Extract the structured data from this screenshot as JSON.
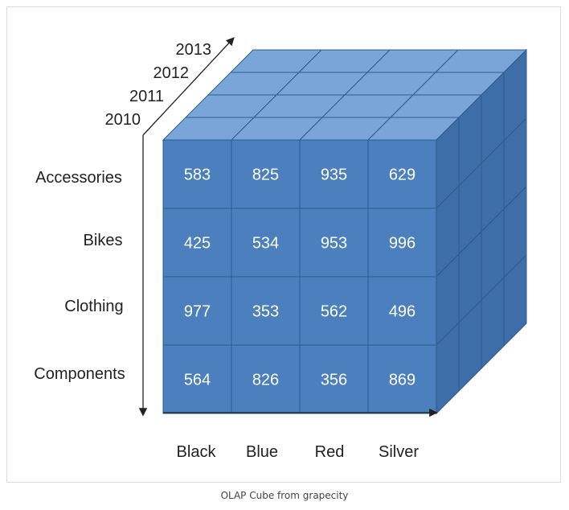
{
  "figure": {
    "caption": "OLAP Cube from grapecity",
    "years": [
      "2013",
      "2012",
      "2011",
      "2010"
    ],
    "categories": [
      "Accessories",
      "Bikes",
      "Clothing",
      "Components"
    ],
    "colors_labels": [
      "Black",
      "Blue",
      "Red",
      "Silver"
    ],
    "values": [
      [
        583,
        825,
        935,
        629
      ],
      [
        425,
        534,
        953,
        996
      ],
      [
        977,
        353,
        562,
        496
      ],
      [
        564,
        826,
        356,
        869
      ]
    ],
    "palette": {
      "front": "#4b7fbd",
      "top": "#7aa5d8",
      "side": "#3e6ea8",
      "edge": "#2f5b8d",
      "value_text": "#ffffff",
      "label_text": "#222222"
    }
  }
}
